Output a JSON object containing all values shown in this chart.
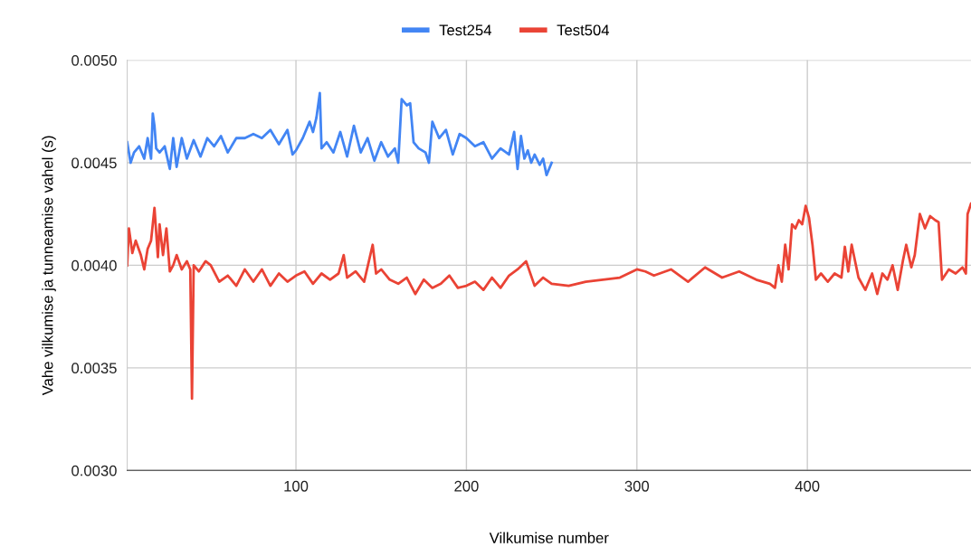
{
  "chart_data": {
    "type": "line",
    "xlabel": "Vilkumise number",
    "ylabel": "Vahe vilkumise ja tunneamise vahel (s)",
    "xlim": [
      1,
      496
    ],
    "xticks": [
      100,
      200,
      300,
      400
    ],
    "ylim": [
      0.003,
      0.005
    ],
    "yticks": [
      {
        "value": 0.003,
        "label": "0.0030"
      },
      {
        "value": 0.0035,
        "label": "0.0035"
      },
      {
        "value": 0.004,
        "label": "0.0040"
      },
      {
        "value": 0.0045,
        "label": "0.0045"
      },
      {
        "value": 0.005,
        "label": "0.0050"
      }
    ],
    "grid": true,
    "legend": "top",
    "line_style": "solid",
    "series": [
      {
        "name": "Test254",
        "color": "#4285f4",
        "x": [
          1,
          3,
          5,
          8,
          11,
          13,
          15,
          16,
          17,
          18,
          20,
          23,
          26,
          28,
          30,
          33,
          36,
          40,
          44,
          48,
          52,
          56,
          60,
          65,
          70,
          75,
          80,
          85,
          90,
          95,
          98,
          100,
          104,
          108,
          110,
          112,
          114,
          115,
          118,
          122,
          126,
          130,
          134,
          138,
          142,
          146,
          150,
          154,
          158,
          160,
          162,
          165,
          167,
          169,
          172,
          176,
          178,
          180,
          184,
          188,
          192,
          196,
          200,
          205,
          210,
          215,
          220,
          225,
          228,
          230,
          232,
          234,
          236,
          238,
          240,
          243,
          245,
          247,
          250
        ],
        "values": [
          0.0046,
          0.0045,
          0.00455,
          0.00458,
          0.00452,
          0.00462,
          0.00452,
          0.00474,
          0.00468,
          0.00457,
          0.00455,
          0.00458,
          0.00447,
          0.00462,
          0.00448,
          0.00462,
          0.00452,
          0.00461,
          0.00453,
          0.00462,
          0.00458,
          0.00463,
          0.00455,
          0.00462,
          0.00462,
          0.00464,
          0.00462,
          0.00466,
          0.00459,
          0.00466,
          0.00454,
          0.00456,
          0.00462,
          0.0047,
          0.00465,
          0.00472,
          0.00484,
          0.00457,
          0.0046,
          0.00455,
          0.00465,
          0.00453,
          0.00468,
          0.00455,
          0.00462,
          0.00451,
          0.0046,
          0.00453,
          0.00457,
          0.0045,
          0.00481,
          0.00478,
          0.00479,
          0.0046,
          0.00457,
          0.00455,
          0.0045,
          0.0047,
          0.00462,
          0.00466,
          0.00454,
          0.00464,
          0.00462,
          0.00458,
          0.0046,
          0.00452,
          0.00457,
          0.00454,
          0.00465,
          0.00447,
          0.00463,
          0.00452,
          0.00456,
          0.0045,
          0.00454,
          0.00449,
          0.00452,
          0.00444,
          0.0045
        ]
      },
      {
        "name": "Test504",
        "color": "#ea4335",
        "x": [
          1,
          2,
          4,
          6,
          9,
          11,
          13,
          15,
          17,
          19,
          20,
          22,
          24,
          26,
          28,
          30,
          33,
          36,
          38,
          39,
          40,
          43,
          47,
          50,
          55,
          60,
          65,
          70,
          75,
          80,
          85,
          90,
          95,
          100,
          105,
          110,
          115,
          120,
          125,
          128,
          130,
          135,
          140,
          145,
          147,
          150,
          155,
          160,
          165,
          170,
          175,
          180,
          185,
          190,
          195,
          200,
          205,
          210,
          215,
          220,
          225,
          230,
          235,
          240,
          245,
          250,
          260,
          270,
          280,
          290,
          300,
          305,
          310,
          320,
          330,
          340,
          350,
          360,
          370,
          378,
          381,
          383,
          385,
          387,
          389,
          391,
          393,
          395,
          397,
          399,
          401,
          403,
          405,
          408,
          412,
          416,
          420,
          422,
          424,
          426,
          430,
          434,
          438,
          441,
          444,
          447,
          450,
          453,
          456,
          458,
          461,
          463,
          466,
          469,
          472,
          475,
          477,
          479,
          483,
          487,
          491,
          493,
          494,
          496
        ],
        "values": [
          0.004,
          0.00418,
          0.00406,
          0.00412,
          0.00405,
          0.00398,
          0.00408,
          0.00412,
          0.00428,
          0.00404,
          0.0042,
          0.00405,
          0.00418,
          0.00397,
          0.004,
          0.00405,
          0.00398,
          0.00402,
          0.00398,
          0.00335,
          0.004,
          0.00397,
          0.00402,
          0.004,
          0.00392,
          0.00395,
          0.0039,
          0.00398,
          0.00392,
          0.00398,
          0.0039,
          0.00396,
          0.00392,
          0.00395,
          0.00397,
          0.00391,
          0.00396,
          0.00393,
          0.00396,
          0.00405,
          0.00394,
          0.00397,
          0.00392,
          0.0041,
          0.00396,
          0.00398,
          0.00393,
          0.00391,
          0.00394,
          0.00386,
          0.00393,
          0.00389,
          0.00391,
          0.00395,
          0.00389,
          0.0039,
          0.00392,
          0.00388,
          0.00394,
          0.00389,
          0.00395,
          0.00398,
          0.00402,
          0.0039,
          0.00394,
          0.00391,
          0.0039,
          0.00392,
          0.00393,
          0.00394,
          0.00398,
          0.00397,
          0.00395,
          0.00398,
          0.00392,
          0.00399,
          0.00394,
          0.00397,
          0.00393,
          0.00391,
          0.00389,
          0.004,
          0.00392,
          0.0041,
          0.00398,
          0.0042,
          0.00418,
          0.00422,
          0.0042,
          0.00429,
          0.00423,
          0.0041,
          0.00393,
          0.00396,
          0.00392,
          0.00396,
          0.00394,
          0.00409,
          0.00397,
          0.0041,
          0.00394,
          0.00388,
          0.00396,
          0.00386,
          0.00396,
          0.00393,
          0.004,
          0.00388,
          0.00402,
          0.0041,
          0.00399,
          0.00405,
          0.00425,
          0.00418,
          0.00424,
          0.00422,
          0.00421,
          0.00393,
          0.00398,
          0.00396,
          0.00399,
          0.00396,
          0.00425,
          0.0043
        ]
      }
    ]
  }
}
